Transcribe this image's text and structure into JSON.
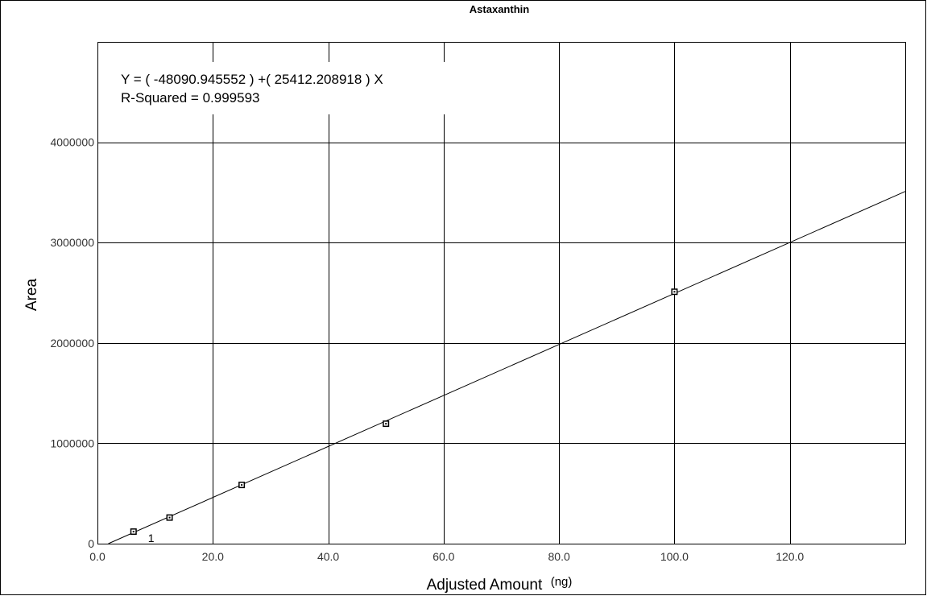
{
  "chart_data": {
    "type": "scatter",
    "title": "Astaxanthin",
    "xlabel": "Adjusted Amount",
    "xunit": "(ng)",
    "ylabel": "Area",
    "xlim": [
      0,
      140
    ],
    "ylim": [
      0,
      5000000
    ],
    "x_ticks": [
      0,
      20,
      40,
      60,
      80,
      100,
      120
    ],
    "x_tick_labels": [
      "0.0",
      "20.0",
      "40.0",
      "60.0",
      "80.0",
      "100.0",
      "120.0"
    ],
    "y_ticks": [
      0,
      1000000,
      2000000,
      3000000,
      4000000
    ],
    "y_tick_labels": [
      "0",
      "1000000",
      "2000000",
      "3000000",
      "4000000"
    ],
    "grid": true,
    "points": [
      {
        "x": 6.25,
        "y": 120000,
        "label": "1"
      },
      {
        "x": 12.5,
        "y": 260000,
        "label": ""
      },
      {
        "x": 25.0,
        "y": 585000,
        "label": ""
      },
      {
        "x": 50.0,
        "y": 1195000,
        "label": ""
      },
      {
        "x": 100.0,
        "y": 2510000,
        "label": ""
      }
    ],
    "fit": {
      "intercept": -48090.945552,
      "slope": 25412.208918,
      "x_range": [
        1.89,
        140
      ]
    },
    "annotations": {
      "equation": "Y = ( -48090.945552 ) +( 25412.208918 ) X",
      "r_squared": "R-Squared = 0.999593"
    },
    "colors": {
      "background": "#ffffff",
      "lines": "#000000",
      "tick_text": "#333333"
    }
  }
}
